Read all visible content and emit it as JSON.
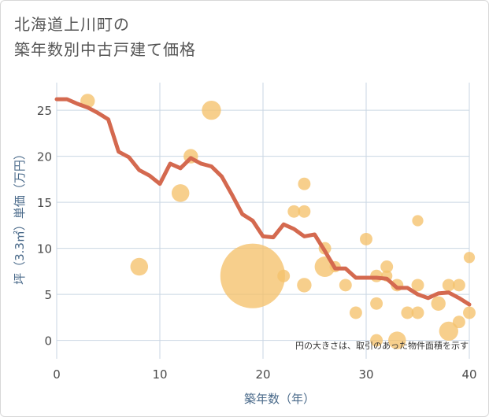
{
  "title_line1": "北海道上川町の",
  "title_line2": "築年数別中古戸建て価格",
  "chart_data": {
    "type": "scatter",
    "xlabel": "築年数（年）",
    "ylabel": "坪（3.3㎡）単価（万円）",
    "xlim": [
      0,
      40
    ],
    "ylim": [
      -2,
      28
    ],
    "x_ticks": [
      0,
      10,
      20,
      30,
      40
    ],
    "y_ticks": [
      0,
      5,
      10,
      15,
      20,
      25
    ],
    "grid": true,
    "note": "円の大きさは、取引のあった物件面積を示す",
    "colors": {
      "bubble": "#f5c26b",
      "line": "#d4694f",
      "grid": "#c9d6e3"
    },
    "series": [
      {
        "type": "bubble",
        "points": [
          {
            "x": 3,
            "y": 26,
            "size": 2
          },
          {
            "x": 8,
            "y": 8,
            "size": 3
          },
          {
            "x": 12,
            "y": 16,
            "size": 3
          },
          {
            "x": 13,
            "y": 20,
            "size": 2
          },
          {
            "x": 15,
            "y": 25,
            "size": 3.5
          },
          {
            "x": 19,
            "y": 7,
            "size": 40
          },
          {
            "x": 22,
            "y": 7,
            "size": 1.5
          },
          {
            "x": 23,
            "y": 14,
            "size": 1.5
          },
          {
            "x": 24,
            "y": 17,
            "size": 1.5
          },
          {
            "x": 24,
            "y": 14,
            "size": 1.5
          },
          {
            "x": 24,
            "y": 6,
            "size": 2
          },
          {
            "x": 26,
            "y": 10,
            "size": 1.5
          },
          {
            "x": 26,
            "y": 8,
            "size": 4
          },
          {
            "x": 27,
            "y": 8,
            "size": 1.2
          },
          {
            "x": 28,
            "y": 6,
            "size": 1.5
          },
          {
            "x": 29,
            "y": 3,
            "size": 1.5
          },
          {
            "x": 30,
            "y": 11,
            "size": 1.5
          },
          {
            "x": 31,
            "y": 7,
            "size": 1.5
          },
          {
            "x": 31,
            "y": 4,
            "size": 1.5
          },
          {
            "x": 31,
            "y": 0,
            "size": 1.5
          },
          {
            "x": 32,
            "y": 8,
            "size": 1.5
          },
          {
            "x": 32,
            "y": 7,
            "size": 1.2
          },
          {
            "x": 33,
            "y": 6,
            "size": 1.5
          },
          {
            "x": 33,
            "y": 0,
            "size": 3
          },
          {
            "x": 34,
            "y": 3,
            "size": 1.5
          },
          {
            "x": 35,
            "y": 13,
            "size": 1.2
          },
          {
            "x": 35,
            "y": 6,
            "size": 1.5
          },
          {
            "x": 35,
            "y": 3,
            "size": 1.5
          },
          {
            "x": 37,
            "y": 4,
            "size": 2
          },
          {
            "x": 38,
            "y": 6,
            "size": 1.5
          },
          {
            "x": 38,
            "y": 1,
            "size": 3.5
          },
          {
            "x": 39,
            "y": 6,
            "size": 1.5
          },
          {
            "x": 39,
            "y": 2,
            "size": 1.5
          },
          {
            "x": 40,
            "y": 9,
            "size": 1.2
          },
          {
            "x": 40,
            "y": 3,
            "size": 1.5
          }
        ]
      },
      {
        "type": "line",
        "x": [
          0,
          1,
          2,
          3,
          4,
          5,
          6,
          7,
          8,
          9,
          10,
          11,
          12,
          13,
          14,
          15,
          16,
          17,
          18,
          19,
          20,
          21,
          22,
          23,
          24,
          25,
          26,
          27,
          28,
          29,
          30,
          31,
          32,
          33,
          34,
          35,
          36,
          37,
          38,
          39,
          40
        ],
        "y": [
          26.2,
          26.2,
          25.7,
          25.3,
          24.7,
          24.0,
          20.5,
          19.9,
          18.5,
          17.9,
          17.0,
          19.2,
          18.7,
          19.8,
          19.2,
          18.9,
          17.8,
          15.8,
          13.7,
          13.0,
          11.3,
          11.2,
          12.6,
          12.1,
          11.3,
          11.5,
          9.7,
          7.8,
          7.8,
          6.8,
          6.8,
          6.8,
          6.7,
          5.7,
          5.7,
          5.0,
          4.6,
          5.1,
          5.2,
          4.6,
          3.9
        ]
      }
    ]
  }
}
